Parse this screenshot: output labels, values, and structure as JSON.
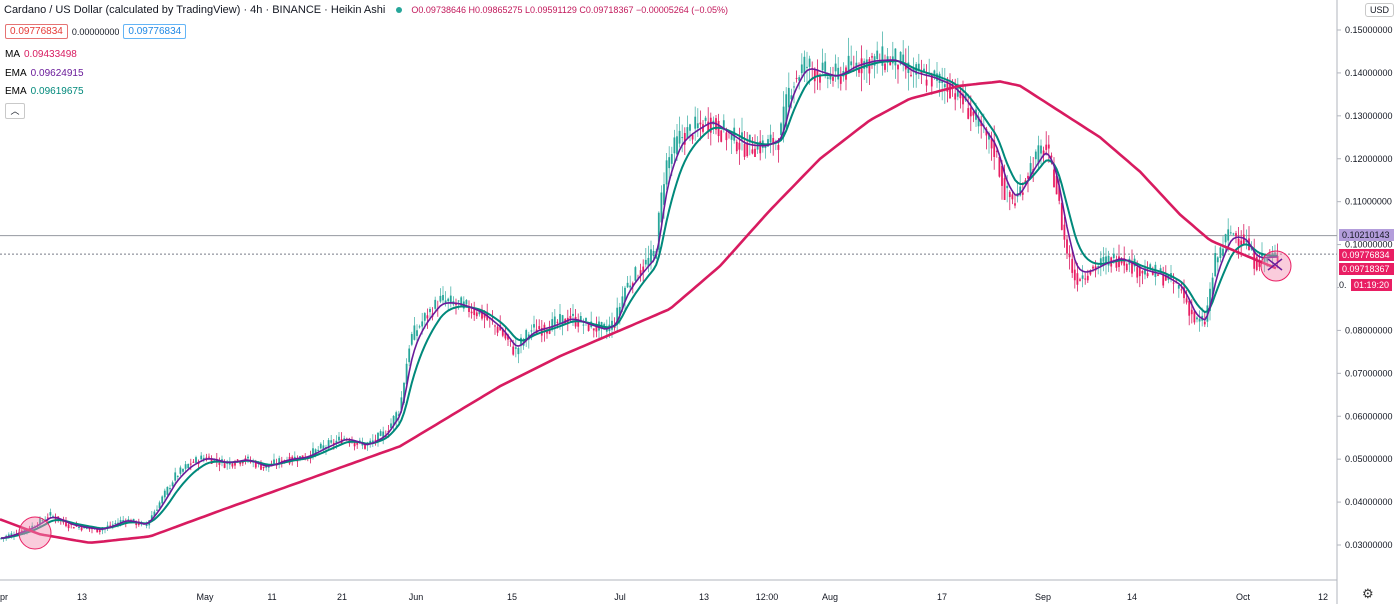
{
  "header": {
    "symbol": "Cardano / US Dollar (calculated by TradingView) · 4h · BINANCE · Heikin Ashi",
    "ohlc": "O0.09738646  H0.09865275  L0.09591129  C0.09718367  −0.00005264 (−0.05%)",
    "sell_price": "0.09776834",
    "spread": "0.00000000",
    "buy_price": "0.09776834",
    "ma_label": "MA",
    "ma_value": "0.09433498",
    "ema1_label": "EMA",
    "ema1_value": "0.09624915",
    "ema2_label": "EMA",
    "ema2_value": "0.09619675",
    "collapse_icon": "chevron-up-icon"
  },
  "currency_button": "USD",
  "settings_icon": "gear-icon",
  "price_tags": {
    "line_level": "0.10210143",
    "bid": "0.09776834",
    "last": "0.09718367",
    "countdown": "01:19:20",
    "hidden_edge": "0."
  },
  "colors": {
    "candles": "#c2185b",
    "ma": "#d81b60",
    "ema_fast": "#6a1b9a",
    "ema_slow": "#00897b",
    "axis_text": "#131722",
    "tag_bg": "#e91e63",
    "line_tag_bg": "#9c8fd8"
  },
  "chart_data": {
    "type": "candlestick",
    "y_axis_labels": [
      "0.15000000",
      "0.14000000",
      "0.13000000",
      "0.12000000",
      "0.11000000",
      "0.10000000",
      "0.09000000",
      "0.08000000",
      "0.07000000",
      "0.06000000",
      "0.05000000",
      "0.04000000",
      "0.03000000"
    ],
    "x_axis_labels": [
      "pr",
      "13",
      "May",
      "11",
      "21",
      "Jun",
      "15",
      "Jul",
      "13",
      "12:00",
      "Aug",
      "17",
      "Sep",
      "14",
      "Oct",
      "12"
    ],
    "ylim": [
      0.022,
      0.155
    ],
    "horizontal_line": 0.10210143,
    "price_series": [
      [
        0,
        0.0315
      ],
      [
        30,
        0.034
      ],
      [
        50,
        0.037
      ],
      [
        70,
        0.0345
      ],
      [
        100,
        0.0335
      ],
      [
        125,
        0.036
      ],
      [
        145,
        0.0345
      ],
      [
        160,
        0.04
      ],
      [
        175,
        0.046
      ],
      [
        190,
        0.049
      ],
      [
        205,
        0.0505
      ],
      [
        225,
        0.049
      ],
      [
        245,
        0.05
      ],
      [
        265,
        0.048
      ],
      [
        285,
        0.05
      ],
      [
        305,
        0.0505
      ],
      [
        325,
        0.053
      ],
      [
        345,
        0.055
      ],
      [
        365,
        0.053
      ],
      [
        385,
        0.056
      ],
      [
        400,
        0.062
      ],
      [
        410,
        0.078
      ],
      [
        425,
        0.083
      ],
      [
        440,
        0.087
      ],
      [
        460,
        0.086
      ],
      [
        480,
        0.084
      ],
      [
        500,
        0.08
      ],
      [
        515,
        0.075
      ],
      [
        530,
        0.08
      ],
      [
        550,
        0.081
      ],
      [
        570,
        0.083
      ],
      [
        590,
        0.081
      ],
      [
        605,
        0.08
      ],
      [
        615,
        0.082
      ],
      [
        625,
        0.09
      ],
      [
        640,
        0.094
      ],
      [
        655,
        0.098
      ],
      [
        665,
        0.118
      ],
      [
        680,
        0.125
      ],
      [
        695,
        0.127
      ],
      [
        710,
        0.129
      ],
      [
        725,
        0.126
      ],
      [
        745,
        0.123
      ],
      [
        765,
        0.123
      ],
      [
        780,
        0.125
      ],
      [
        790,
        0.137
      ],
      [
        805,
        0.142
      ],
      [
        820,
        0.14
      ],
      [
        835,
        0.139
      ],
      [
        855,
        0.142
      ],
      [
        875,
        0.143
      ],
      [
        895,
        0.143
      ],
      [
        910,
        0.14
      ],
      [
        930,
        0.139
      ],
      [
        950,
        0.137
      ],
      [
        965,
        0.133
      ],
      [
        980,
        0.127
      ],
      [
        995,
        0.122
      ],
      [
        1005,
        0.112
      ],
      [
        1015,
        0.11
      ],
      [
        1030,
        0.118
      ],
      [
        1045,
        0.123
      ],
      [
        1055,
        0.115
      ],
      [
        1065,
        0.1
      ],
      [
        1075,
        0.092
      ],
      [
        1090,
        0.094
      ],
      [
        1105,
        0.096
      ],
      [
        1120,
        0.097
      ],
      [
        1140,
        0.094
      ],
      [
        1160,
        0.093
      ],
      [
        1180,
        0.09
      ],
      [
        1195,
        0.082
      ],
      [
        1205,
        0.082
      ],
      [
        1215,
        0.096
      ],
      [
        1230,
        0.103
      ],
      [
        1245,
        0.101
      ],
      [
        1255,
        0.096
      ],
      [
        1265,
        0.097
      ],
      [
        1278,
        0.0972
      ]
    ],
    "ma_series": [
      [
        0,
        0.036
      ],
      [
        40,
        0.0325
      ],
      [
        90,
        0.0305
      ],
      [
        150,
        0.032
      ],
      [
        220,
        0.038
      ],
      [
        280,
        0.043
      ],
      [
        340,
        0.048
      ],
      [
        400,
        0.053
      ],
      [
        450,
        0.06
      ],
      [
        500,
        0.067
      ],
      [
        560,
        0.074
      ],
      [
        620,
        0.08
      ],
      [
        670,
        0.085
      ],
      [
        720,
        0.095
      ],
      [
        770,
        0.108
      ],
      [
        820,
        0.12
      ],
      [
        870,
        0.129
      ],
      [
        910,
        0.134
      ],
      [
        960,
        0.137
      ],
      [
        1000,
        0.138
      ],
      [
        1020,
        0.137
      ],
      [
        1060,
        0.131
      ],
      [
        1100,
        0.125
      ],
      [
        1140,
        0.117
      ],
      [
        1180,
        0.107
      ],
      [
        1210,
        0.101
      ],
      [
        1240,
        0.098
      ],
      [
        1278,
        0.0943
      ]
    ]
  }
}
